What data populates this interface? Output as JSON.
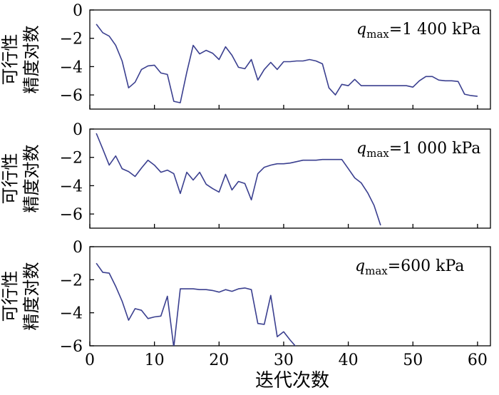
{
  "chart_data": [
    {
      "type": "line",
      "annotation": {
        "q": "q",
        "sub": "max",
        "value": "=1 400 kPa"
      },
      "ylabel_lines": [
        "可行性",
        "精度对数"
      ],
      "xlim": [
        0,
        62
      ],
      "ylim": [
        -7,
        0
      ],
      "xticks": [
        0,
        10,
        20,
        30,
        40,
        50,
        60
      ],
      "yticks": [
        0,
        -2,
        -4,
        -6
      ],
      "ytick_labels": [
        "0",
        "−2",
        "−4",
        "−6"
      ],
      "color": "#3a3f8f",
      "x": [
        1,
        2,
        3,
        4,
        5,
        6,
        7,
        8,
        9,
        10,
        11,
        12,
        13,
        14,
        15,
        16,
        17,
        18,
        19,
        20,
        21,
        22,
        23,
        24,
        25,
        26,
        27,
        28,
        29,
        30,
        31,
        32,
        33,
        34,
        35,
        36,
        37,
        38,
        39,
        40,
        41,
        42,
        43,
        44,
        45,
        46,
        47,
        48,
        49,
        50,
        51,
        52,
        53,
        54,
        55,
        56,
        57,
        58,
        59,
        60
      ],
      "y": [
        -1.0,
        -1.6,
        -1.85,
        -2.5,
        -3.6,
        -5.5,
        -5.1,
        -4.2,
        -3.95,
        -3.9,
        -4.45,
        -4.55,
        -6.45,
        -6.55,
        -4.4,
        -2.5,
        -3.1,
        -2.85,
        -3.05,
        -3.5,
        -2.6,
        -3.2,
        -4.05,
        -4.15,
        -3.5,
        -4.95,
        -4.2,
        -3.7,
        -4.2,
        -3.65,
        -3.65,
        -3.6,
        -3.6,
        -3.5,
        -3.6,
        -3.8,
        -5.5,
        -6.0,
        -5.25,
        -5.35,
        -4.9,
        -5.35,
        -5.35,
        -5.35,
        -5.35,
        -5.35,
        -5.35,
        -5.35,
        -5.35,
        -5.45,
        -5.0,
        -4.7,
        -4.7,
        -4.95,
        -5.0,
        -5.0,
        -5.05,
        -5.95,
        -6.05,
        -6.1
      ]
    },
    {
      "type": "line",
      "annotation": {
        "q": "q",
        "sub": "max",
        "value": "=1 000 kPa"
      },
      "ylabel_lines": [
        "可行性",
        "精度对数"
      ],
      "xlim": [
        0,
        62
      ],
      "ylim": [
        -7,
        0
      ],
      "xticks": [
        0,
        10,
        20,
        30,
        40,
        50,
        60
      ],
      "yticks": [
        0,
        -2,
        -4,
        -6
      ],
      "ytick_labels": [
        "0",
        "−2",
        "−4",
        "−6"
      ],
      "color": "#3a3f8f",
      "x": [
        1,
        2,
        3,
        4,
        5,
        6,
        7,
        8,
        9,
        10,
        11,
        12,
        13,
        14,
        15,
        16,
        17,
        18,
        19,
        20,
        21,
        22,
        23,
        24,
        25,
        26,
        27,
        28,
        29,
        30,
        31,
        32,
        33,
        34,
        35,
        36,
        37,
        38,
        39,
        40,
        41,
        42,
        43,
        44,
        45
      ],
      "y": [
        -0.3,
        -1.4,
        -2.55,
        -1.9,
        -2.8,
        -3.0,
        -3.35,
        -2.75,
        -2.2,
        -2.55,
        -3.05,
        -2.9,
        -3.15,
        -4.55,
        -3.05,
        -3.6,
        -3.05,
        -3.9,
        -4.2,
        -4.45,
        -3.2,
        -4.3,
        -3.7,
        -3.85,
        -5.0,
        -3.15,
        -2.7,
        -2.55,
        -2.45,
        -2.45,
        -2.4,
        -2.3,
        -2.2,
        -2.2,
        -2.2,
        -2.15,
        -2.15,
        -2.15,
        -2.15,
        -2.8,
        -3.45,
        -3.8,
        -4.5,
        -5.4,
        -6.8
      ]
    },
    {
      "type": "line",
      "annotation": {
        "q": "q",
        "sub": "max",
        "value": "=600 kPa"
      },
      "ylabel_lines": [
        "可行性",
        "精度对数"
      ],
      "xlim": [
        0,
        62
      ],
      "ylim": [
        -6,
        0
      ],
      "xticks": [
        0,
        10,
        20,
        30,
        40,
        50,
        60
      ],
      "xtick_labels": [
        "0",
        "10",
        "20",
        "30",
        "40",
        "50",
        "60"
      ],
      "yticks": [
        0,
        -2,
        -4,
        -6
      ],
      "ytick_labels": [
        "0",
        "−2",
        "−4",
        "−6"
      ],
      "xlabel": "迭代次数",
      "color": "#3a3f8f",
      "x": [
        1,
        2,
        3,
        4,
        5,
        6,
        7,
        8,
        9,
        10,
        11,
        12,
        13,
        14,
        15,
        16,
        17,
        18,
        19,
        20,
        21,
        22,
        23,
        24,
        25,
        26,
        27,
        28,
        29,
        30,
        31,
        32
      ],
      "y": [
        -1.0,
        -1.55,
        -1.6,
        -2.4,
        -3.3,
        -4.45,
        -3.75,
        -3.85,
        -4.35,
        -4.25,
        -4.2,
        -3.0,
        -6.1,
        -2.55,
        -2.55,
        -2.55,
        -2.6,
        -2.6,
        -2.65,
        -2.75,
        -2.6,
        -2.7,
        -2.55,
        -2.5,
        -2.6,
        -4.65,
        -4.7,
        -2.95,
        -5.45,
        -5.15,
        -5.65,
        -6.1
      ]
    }
  ]
}
